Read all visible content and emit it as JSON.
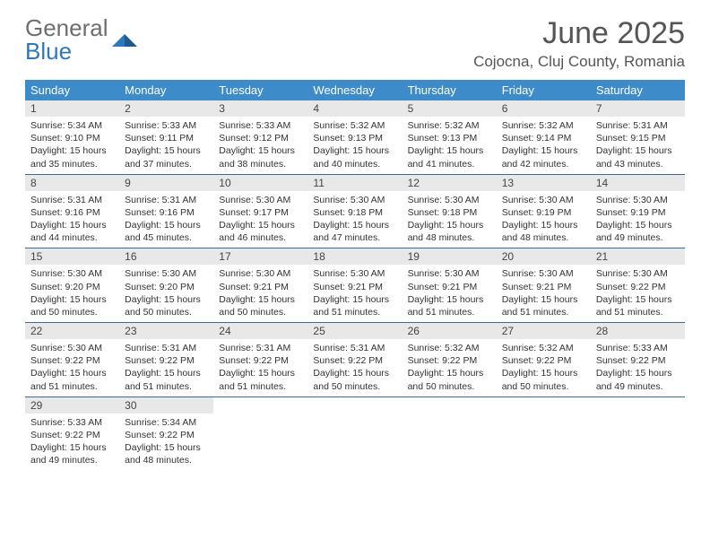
{
  "logo": {
    "text_general": "General",
    "text_blue": "Blue"
  },
  "title": "June 2025",
  "location": "Cojocna, Cluj County, Romania",
  "colors": {
    "header_bg": "#3e8bc9",
    "header_text": "#ffffff",
    "daynum_bg": "#e8e8e8",
    "row_border": "#3e6a8f",
    "title_color": "#555555",
    "body_text": "#333333",
    "logo_gray": "#6e6e6e",
    "logo_blue": "#2f78b7"
  },
  "typography": {
    "title_fontsize": 34,
    "location_fontsize": 17,
    "weekday_fontsize": 13,
    "daynum_fontsize": 12,
    "body_fontsize": 10.5
  },
  "weekdays": [
    "Sunday",
    "Monday",
    "Tuesday",
    "Wednesday",
    "Thursday",
    "Friday",
    "Saturday"
  ],
  "days": [
    {
      "n": 1,
      "sr": "5:34 AM",
      "ss": "9:10 PM",
      "dl": "15 hours and 35 minutes."
    },
    {
      "n": 2,
      "sr": "5:33 AM",
      "ss": "9:11 PM",
      "dl": "15 hours and 37 minutes."
    },
    {
      "n": 3,
      "sr": "5:33 AM",
      "ss": "9:12 PM",
      "dl": "15 hours and 38 minutes."
    },
    {
      "n": 4,
      "sr": "5:32 AM",
      "ss": "9:13 PM",
      "dl": "15 hours and 40 minutes."
    },
    {
      "n": 5,
      "sr": "5:32 AM",
      "ss": "9:13 PM",
      "dl": "15 hours and 41 minutes."
    },
    {
      "n": 6,
      "sr": "5:32 AM",
      "ss": "9:14 PM",
      "dl": "15 hours and 42 minutes."
    },
    {
      "n": 7,
      "sr": "5:31 AM",
      "ss": "9:15 PM",
      "dl": "15 hours and 43 minutes."
    },
    {
      "n": 8,
      "sr": "5:31 AM",
      "ss": "9:16 PM",
      "dl": "15 hours and 44 minutes."
    },
    {
      "n": 9,
      "sr": "5:31 AM",
      "ss": "9:16 PM",
      "dl": "15 hours and 45 minutes."
    },
    {
      "n": 10,
      "sr": "5:30 AM",
      "ss": "9:17 PM",
      "dl": "15 hours and 46 minutes."
    },
    {
      "n": 11,
      "sr": "5:30 AM",
      "ss": "9:18 PM",
      "dl": "15 hours and 47 minutes."
    },
    {
      "n": 12,
      "sr": "5:30 AM",
      "ss": "9:18 PM",
      "dl": "15 hours and 48 minutes."
    },
    {
      "n": 13,
      "sr": "5:30 AM",
      "ss": "9:19 PM",
      "dl": "15 hours and 48 minutes."
    },
    {
      "n": 14,
      "sr": "5:30 AM",
      "ss": "9:19 PM",
      "dl": "15 hours and 49 minutes."
    },
    {
      "n": 15,
      "sr": "5:30 AM",
      "ss": "9:20 PM",
      "dl": "15 hours and 50 minutes."
    },
    {
      "n": 16,
      "sr": "5:30 AM",
      "ss": "9:20 PM",
      "dl": "15 hours and 50 minutes."
    },
    {
      "n": 17,
      "sr": "5:30 AM",
      "ss": "9:21 PM",
      "dl": "15 hours and 50 minutes."
    },
    {
      "n": 18,
      "sr": "5:30 AM",
      "ss": "9:21 PM",
      "dl": "15 hours and 51 minutes."
    },
    {
      "n": 19,
      "sr": "5:30 AM",
      "ss": "9:21 PM",
      "dl": "15 hours and 51 minutes."
    },
    {
      "n": 20,
      "sr": "5:30 AM",
      "ss": "9:21 PM",
      "dl": "15 hours and 51 minutes."
    },
    {
      "n": 21,
      "sr": "5:30 AM",
      "ss": "9:22 PM",
      "dl": "15 hours and 51 minutes."
    },
    {
      "n": 22,
      "sr": "5:30 AM",
      "ss": "9:22 PM",
      "dl": "15 hours and 51 minutes."
    },
    {
      "n": 23,
      "sr": "5:31 AM",
      "ss": "9:22 PM",
      "dl": "15 hours and 51 minutes."
    },
    {
      "n": 24,
      "sr": "5:31 AM",
      "ss": "9:22 PM",
      "dl": "15 hours and 51 minutes."
    },
    {
      "n": 25,
      "sr": "5:31 AM",
      "ss": "9:22 PM",
      "dl": "15 hours and 50 minutes."
    },
    {
      "n": 26,
      "sr": "5:32 AM",
      "ss": "9:22 PM",
      "dl": "15 hours and 50 minutes."
    },
    {
      "n": 27,
      "sr": "5:32 AM",
      "ss": "9:22 PM",
      "dl": "15 hours and 50 minutes."
    },
    {
      "n": 28,
      "sr": "5:33 AM",
      "ss": "9:22 PM",
      "dl": "15 hours and 49 minutes."
    },
    {
      "n": 29,
      "sr": "5:33 AM",
      "ss": "9:22 PM",
      "dl": "15 hours and 49 minutes."
    },
    {
      "n": 30,
      "sr": "5:34 AM",
      "ss": "9:22 PM",
      "dl": "15 hours and 48 minutes."
    }
  ],
  "labels": {
    "sunrise": "Sunrise:",
    "sunset": "Sunset:",
    "daylight": "Daylight:"
  }
}
